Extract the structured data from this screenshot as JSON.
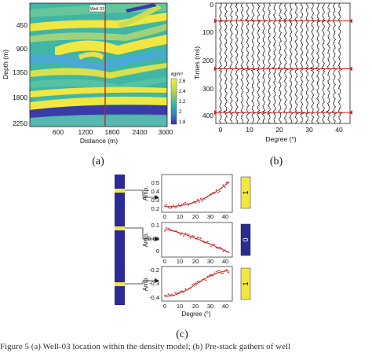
{
  "panel_a": {
    "label": "(a)",
    "well_label": "Well 03",
    "xlabel": "Distance (m)",
    "ylabel": "Depth (m)",
    "colorbar_unit": "kg/m³",
    "x_ticks": [
      "600",
      "1200",
      "1800",
      "2400",
      "3000"
    ],
    "y_ticks": [
      "450",
      "900",
      "1350",
      "1800",
      "2250"
    ],
    "colorbar_ticks": [
      "2.6",
      "2.4",
      "2.2",
      "2",
      "1.8"
    ],
    "colors": {
      "well_line": "#cc2222",
      "yellow": "#f2e640",
      "teal": "#3fb6a6",
      "blue": "#3a3aa8"
    }
  },
  "panel_b": {
    "label": "(b)",
    "xlabel": "Degree (°)",
    "ylabel": "Times (ms)",
    "x_ticks": [
      "0",
      "10",
      "20",
      "30",
      "40"
    ],
    "y_ticks": [
      "0",
      "100",
      "200",
      "300",
      "400"
    ],
    "marker_times_ms": [
      65,
      240,
      400
    ]
  },
  "panel_c": {
    "label": "(c)",
    "layers": [
      {
        "ylabel": "Amp.",
        "xlabel": "",
        "y_ticks": [
          "0.5",
          "0.4",
          "0.3",
          "0.2"
        ],
        "x_ticks": [
          "0",
          "10",
          "20",
          "30",
          "40"
        ],
        "class_value": "1",
        "class_color": "#f2e640"
      },
      {
        "ylabel": "Amp.",
        "xlabel": "",
        "y_ticks": [
          "0.1",
          "0.05",
          "0"
        ],
        "x_ticks": [
          "0",
          "10",
          "20",
          "30",
          "40"
        ],
        "class_value": "0",
        "class_color": "#2b2b96"
      },
      {
        "ylabel": "Amp.",
        "xlabel": "Degree (°)",
        "y_ticks": [
          "-0.2",
          "-0.3",
          "-0.4"
        ],
        "x_ticks": [
          "0",
          "10",
          "20",
          "30",
          "40"
        ],
        "class_value": "1",
        "class_color": "#f2e640"
      }
    ]
  },
  "caption": "Figure 5  (a) Well-03 location within the density model; (b) Pre-stack gathers of well"
}
